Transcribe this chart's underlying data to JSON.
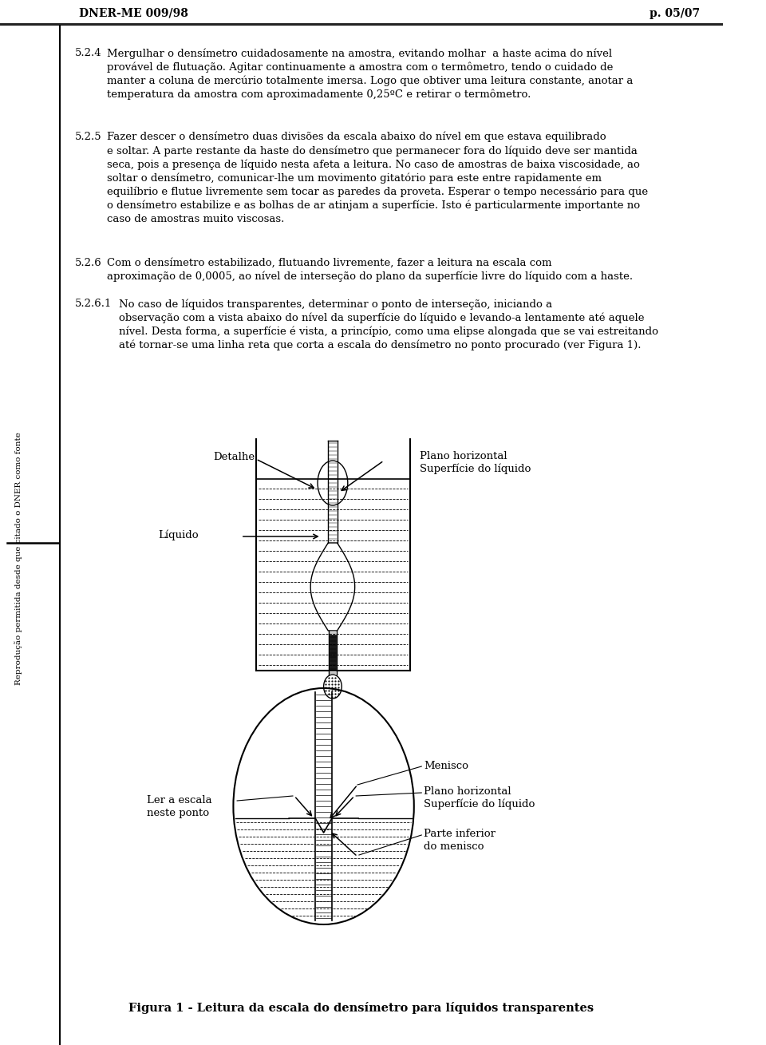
{
  "header_left": "DNER-ME 009/98",
  "header_right": "p. 05/07",
  "bg_color": "#ffffff",
  "text_color": "#000000",
  "sidebar_text": "Reprodução permitida desde que citado o DNER como fonte",
  "fig_caption": "Figura 1 - Leitura da escala do densímetro para líquidos transparentes",
  "label_detalhe": "Detalhe",
  "label_liquido": "Líquido",
  "label_plano_h": "Plano horizontal",
  "label_sup_liq": "Superfície do líquido",
  "label_menisco": "Menisco",
  "label_plano_h2": "Plano horizontal",
  "label_sup_liq2": "Superfície do líquido",
  "label_ler": "Ler a escala",
  "label_neste": "neste ponto",
  "label_parte_inf": "Parte inferior",
  "label_do_menisco": "do menisco",
  "p1_num": "5.2.4",
  "p1_text": "Mergulhar o densímetro cuidadosamente na amostra, evitando molhar  a haste acima do nível\nprovável de flutuação. Agitar continuamente a amostra com o termômetro, tendo o cuidado de\nmanter a coluna de mercúrio totalmente imersa. Logo que obtiver uma leitura constante, anotar a\ntemperatura da amostra com aproximadamente 0,25ºC e retirar o termômetro.",
  "p2_num": "5.2.5",
  "p2_text": "Fazer descer o densímetro duas divisões da escala abaixo do nível em que estava equilibrado\ne soltar. A parte restante da haste do densímetro que permanecer fora do líquido deve ser mantida\nseca, pois a presença de líquido nesta afeta a leitura. No caso de amostras de baixa viscosidade, ao\nsoltar o densímetro, comunicar-lhe um movimento gitatório para este entre rapidamente em\nequilíbrio e flutue livremente sem tocar as paredes da proveta. Esperar o tempo necessário para que\no densímetro estabilize e as bolhas de ar atinjam a superfície. Isto é particularmente importante no\ncaso de amostras muito viscosas.",
  "p3_num": "5.2.6",
  "p3_text": "Com o densímetro estabilizado, flutuando livremente, fazer a leitura na escala com\naproximação de 0,0005, ao nível de interseção do plano da superfície livre do líquido com a haste.",
  "p4_num": "5.2.6.1",
  "p4_text": "No caso de líquidos transparentes, determinar o ponto de interseção, iniciando a\nobservação com a vista abaixo do nível da superfície do líquido e levando-a lentamente até aquele\nnível. Desta forma, a superfície é vista, a princípio, como uma elipse alongada que se vai estreitando\naté tornar-se uma linha reta que corta a escala do densímetro no ponto procurado (ver Figura 1)."
}
